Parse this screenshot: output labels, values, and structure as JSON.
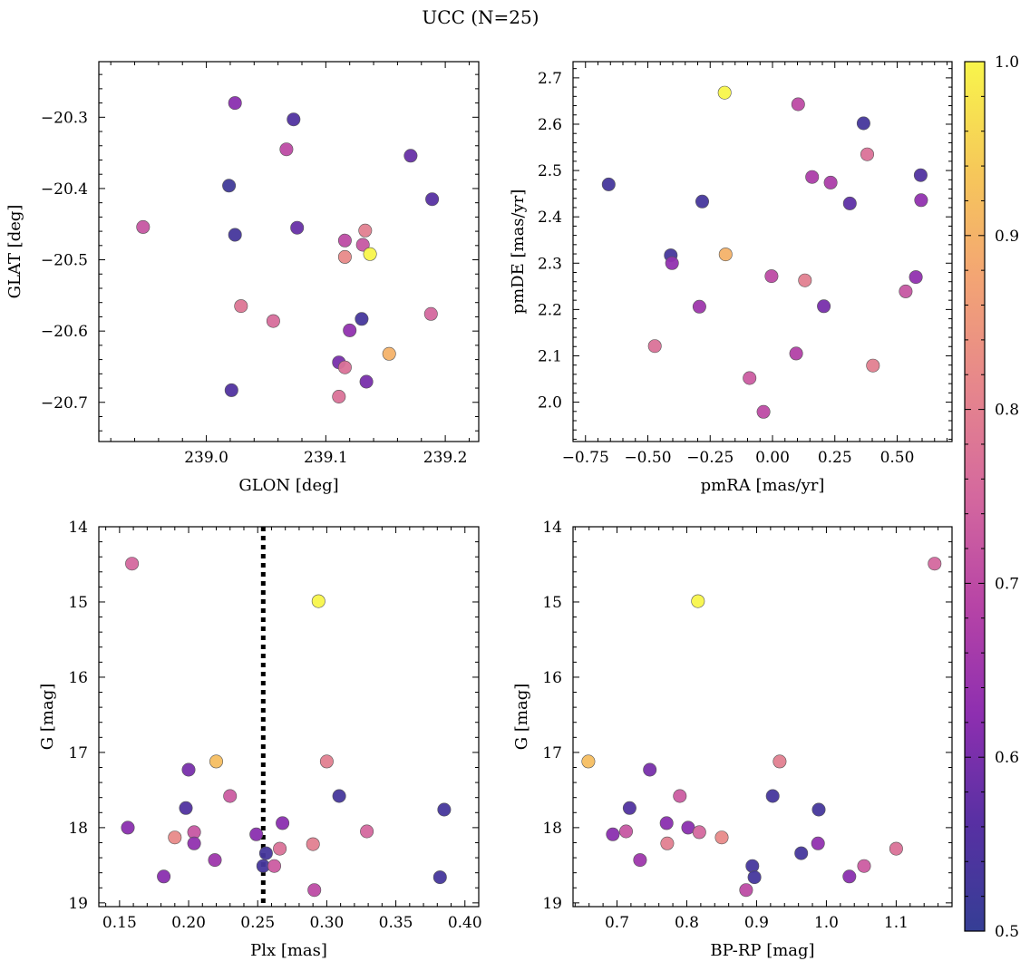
{
  "figure": {
    "title": "UCC (N=25)"
  },
  "chart_data": [
    {
      "type": "scatter",
      "xlabel": "GLON [deg]",
      "ylabel": "GLAT [deg]",
      "xlim": [
        238.91,
        239.228
      ],
      "ylim": [
        -20.755,
        -20.222
      ],
      "xticks": [
        239.0,
        239.1,
        239.2
      ],
      "xtick_labels": [
        "239.0",
        "239.1",
        "239.2"
      ],
      "yticks": [
        -20.3,
        -20.4,
        -20.5,
        -20.6,
        -20.7
      ],
      "ytick_labels": [
        "−20.3",
        "−20.4",
        "−20.5",
        "−20.6",
        "−20.7"
      ],
      "x_minor_step": 0.02,
      "y_minor_step": 0.02,
      "y_inverted": false,
      "points": [
        {
          "x": 239.024,
          "y": -20.28,
          "c": 0.62
        },
        {
          "x": 239.073,
          "y": -20.303,
          "c": 0.55
        },
        {
          "x": 239.067,
          "y": -20.345,
          "c": 0.7
        },
        {
          "x": 239.171,
          "y": -20.354,
          "c": 0.58
        },
        {
          "x": 239.019,
          "y": -20.396,
          "c": 0.52
        },
        {
          "x": 239.189,
          "y": -20.415,
          "c": 0.56
        },
        {
          "x": 238.947,
          "y": -20.454,
          "c": 0.72
        },
        {
          "x": 239.076,
          "y": -20.455,
          "c": 0.58
        },
        {
          "x": 239.024,
          "y": -20.465,
          "c": 0.53
        },
        {
          "x": 239.133,
          "y": -20.459,
          "c": 0.8
        },
        {
          "x": 239.116,
          "y": -20.473,
          "c": 0.7
        },
        {
          "x": 239.131,
          "y": -20.479,
          "c": 0.72
        },
        {
          "x": 239.137,
          "y": -20.492,
          "c": 1.0
        },
        {
          "x": 239.116,
          "y": -20.496,
          "c": 0.82
        },
        {
          "x": 239.029,
          "y": -20.565,
          "c": 0.78
        },
        {
          "x": 239.188,
          "y": -20.576,
          "c": 0.75
        },
        {
          "x": 239.13,
          "y": -20.583,
          "c": 0.53
        },
        {
          "x": 239.056,
          "y": -20.586,
          "c": 0.76
        },
        {
          "x": 239.12,
          "y": -20.599,
          "c": 0.63
        },
        {
          "x": 239.153,
          "y": -20.632,
          "c": 0.9
        },
        {
          "x": 239.111,
          "y": -20.644,
          "c": 0.6
        },
        {
          "x": 239.116,
          "y": -20.651,
          "c": 0.77
        },
        {
          "x": 239.134,
          "y": -20.671,
          "c": 0.6
        },
        {
          "x": 239.021,
          "y": -20.683,
          "c": 0.55
        },
        {
          "x": 239.111,
          "y": -20.692,
          "c": 0.77
        }
      ]
    },
    {
      "type": "scatter",
      "xlabel": "pmRA [mas/yr]",
      "ylabel": "pmDE [mas/yr]",
      "xlim": [
        -0.8,
        0.72
      ],
      "ylim": [
        1.915,
        2.735
      ],
      "xticks": [
        -0.75,
        -0.5,
        -0.25,
        0.0,
        0.25,
        0.5
      ],
      "xtick_labels": [
        "−0.75",
        "−0.50",
        "−0.25",
        "0.00",
        "0.25",
        "0.50"
      ],
      "yticks": [
        2.0,
        2.1,
        2.2,
        2.3,
        2.4,
        2.5,
        2.6,
        2.7
      ],
      "ytick_labels": [
        "2.0",
        "2.1",
        "2.2",
        "2.3",
        "2.4",
        "2.5",
        "2.6",
        "2.7"
      ],
      "x_minor_step": 0.05,
      "y_minor_step": 0.02,
      "y_inverted": false,
      "points": [
        {
          "x": -0.192,
          "y": 2.668,
          "c": 1.0
        },
        {
          "x": 0.103,
          "y": 2.643,
          "c": 0.7
        },
        {
          "x": 0.365,
          "y": 2.602,
          "c": 0.53
        },
        {
          "x": 0.38,
          "y": 2.535,
          "c": 0.77
        },
        {
          "x": 0.594,
          "y": 2.49,
          "c": 0.55
        },
        {
          "x": 0.159,
          "y": 2.486,
          "c": 0.67
        },
        {
          "x": 0.233,
          "y": 2.474,
          "c": 0.67
        },
        {
          "x": -0.657,
          "y": 2.47,
          "c": 0.53
        },
        {
          "x": 0.596,
          "y": 2.436,
          "c": 0.63
        },
        {
          "x": -0.282,
          "y": 2.433,
          "c": 0.53
        },
        {
          "x": 0.31,
          "y": 2.429,
          "c": 0.57
        },
        {
          "x": -0.408,
          "y": 2.317,
          "c": 0.53
        },
        {
          "x": -0.188,
          "y": 2.319,
          "c": 0.9
        },
        {
          "x": -0.403,
          "y": 2.3,
          "c": 0.63
        },
        {
          "x": -0.004,
          "y": 2.272,
          "c": 0.7
        },
        {
          "x": 0.575,
          "y": 2.27,
          "c": 0.63
        },
        {
          "x": 0.13,
          "y": 2.263,
          "c": 0.8
        },
        {
          "x": 0.534,
          "y": 2.239,
          "c": 0.72
        },
        {
          "x": -0.293,
          "y": 2.206,
          "c": 0.65
        },
        {
          "x": 0.206,
          "y": 2.207,
          "c": 0.6
        },
        {
          "x": -0.472,
          "y": 2.121,
          "c": 0.77
        },
        {
          "x": 0.095,
          "y": 2.105,
          "c": 0.68
        },
        {
          "x": 0.403,
          "y": 2.079,
          "c": 0.8
        },
        {
          "x": -0.092,
          "y": 2.052,
          "c": 0.73
        },
        {
          "x": -0.036,
          "y": 1.979,
          "c": 0.7
        }
      ]
    },
    {
      "type": "scatter",
      "xlabel": "Plx [mas]",
      "ylabel": "G [mag]",
      "xlim": [
        0.135,
        0.41
      ],
      "ylim": [
        19.05,
        14.0
      ],
      "xticks": [
        0.15,
        0.2,
        0.25,
        0.3,
        0.35,
        0.4
      ],
      "xtick_labels": [
        "0.15",
        "0.20",
        "0.25",
        "0.30",
        "0.35",
        "0.40"
      ],
      "yticks": [
        14,
        15,
        16,
        17,
        18,
        19
      ],
      "ytick_labels": [
        "14",
        "15",
        "16",
        "17",
        "18",
        "19"
      ],
      "x_minor_step": 0.01,
      "y_minor_step": 0.2,
      "y_inverted": true,
      "vline": 0.254,
      "points": [
        {
          "x": 0.159,
          "y": 14.49,
          "c": 0.75
        },
        {
          "x": 0.294,
          "y": 14.99,
          "c": 1.0
        },
        {
          "x": 0.22,
          "y": 17.12,
          "c": 0.92
        },
        {
          "x": 0.3,
          "y": 17.12,
          "c": 0.8
        },
        {
          "x": 0.2,
          "y": 17.23,
          "c": 0.6
        },
        {
          "x": 0.23,
          "y": 17.58,
          "c": 0.73
        },
        {
          "x": 0.309,
          "y": 17.58,
          "c": 0.53
        },
        {
          "x": 0.198,
          "y": 17.74,
          "c": 0.55
        },
        {
          "x": 0.385,
          "y": 17.76,
          "c": 0.53
        },
        {
          "x": 0.268,
          "y": 17.94,
          "c": 0.62
        },
        {
          "x": 0.156,
          "y": 18.0,
          "c": 0.62
        },
        {
          "x": 0.329,
          "y": 18.05,
          "c": 0.75
        },
        {
          "x": 0.204,
          "y": 18.06,
          "c": 0.72
        },
        {
          "x": 0.249,
          "y": 18.09,
          "c": 0.62
        },
        {
          "x": 0.19,
          "y": 18.13,
          "c": 0.82
        },
        {
          "x": 0.204,
          "y": 18.21,
          "c": 0.63
        },
        {
          "x": 0.29,
          "y": 18.22,
          "c": 0.8
        },
        {
          "x": 0.266,
          "y": 18.28,
          "c": 0.77
        },
        {
          "x": 0.256,
          "y": 18.34,
          "c": 0.53
        },
        {
          "x": 0.219,
          "y": 18.43,
          "c": 0.65
        },
        {
          "x": 0.254,
          "y": 18.51,
          "c": 0.53
        },
        {
          "x": 0.262,
          "y": 18.51,
          "c": 0.73
        },
        {
          "x": 0.182,
          "y": 18.65,
          "c": 0.62
        },
        {
          "x": 0.382,
          "y": 18.66,
          "c": 0.53
        },
        {
          "x": 0.291,
          "y": 18.83,
          "c": 0.7
        }
      ]
    },
    {
      "type": "scatter",
      "xlabel": "BP-RP [mag]",
      "ylabel": "G [mag]",
      "xlim": [
        0.637,
        1.18
      ],
      "ylim": [
        19.05,
        14.0
      ],
      "xticks": [
        0.7,
        0.8,
        0.9,
        1.0,
        1.1
      ],
      "xtick_labels": [
        "0.7",
        "0.8",
        "0.9",
        "1.0",
        "1.1"
      ],
      "yticks": [
        14,
        15,
        16,
        17,
        18,
        19
      ],
      "ytick_labels": [
        "14",
        "15",
        "16",
        "17",
        "18",
        "19"
      ],
      "x_minor_step": 0.02,
      "y_minor_step": 0.2,
      "y_inverted": true,
      "points": [
        {
          "x": 1.155,
          "y": 14.49,
          "c": 0.75
        },
        {
          "x": 0.816,
          "y": 14.99,
          "c": 1.0
        },
        {
          "x": 0.659,
          "y": 17.12,
          "c": 0.92
        },
        {
          "x": 0.933,
          "y": 17.12,
          "c": 0.8
        },
        {
          "x": 0.747,
          "y": 17.23,
          "c": 0.6
        },
        {
          "x": 0.79,
          "y": 17.58,
          "c": 0.73
        },
        {
          "x": 0.923,
          "y": 17.58,
          "c": 0.53
        },
        {
          "x": 0.718,
          "y": 17.74,
          "c": 0.55
        },
        {
          "x": 0.989,
          "y": 17.76,
          "c": 0.53
        },
        {
          "x": 0.771,
          "y": 17.94,
          "c": 0.62
        },
        {
          "x": 0.802,
          "y": 18.0,
          "c": 0.62
        },
        {
          "x": 0.713,
          "y": 18.05,
          "c": 0.72
        },
        {
          "x": 0.818,
          "y": 18.06,
          "c": 0.75
        },
        {
          "x": 0.694,
          "y": 18.09,
          "c": 0.62
        },
        {
          "x": 0.85,
          "y": 18.13,
          "c": 0.82
        },
        {
          "x": 0.772,
          "y": 18.21,
          "c": 0.8
        },
        {
          "x": 0.988,
          "y": 18.21,
          "c": 0.63
        },
        {
          "x": 1.1,
          "y": 18.28,
          "c": 0.77
        },
        {
          "x": 0.964,
          "y": 18.34,
          "c": 0.53
        },
        {
          "x": 0.733,
          "y": 18.43,
          "c": 0.65
        },
        {
          "x": 0.894,
          "y": 18.51,
          "c": 0.53
        },
        {
          "x": 1.054,
          "y": 18.51,
          "c": 0.73
        },
        {
          "x": 1.033,
          "y": 18.65,
          "c": 0.62
        },
        {
          "x": 0.897,
          "y": 18.66,
          "c": 0.53
        },
        {
          "x": 0.885,
          "y": 18.83,
          "c": 0.7
        }
      ]
    }
  ],
  "colorbar": {
    "colormap": "plasma",
    "range": [
      0.5,
      1.0
    ],
    "ticks": [
      0.5,
      0.6,
      0.7,
      0.8,
      0.9,
      1.0
    ],
    "tick_labels": [
      "0.5",
      "0.6",
      "0.7",
      "0.8",
      "0.9",
      "1.0"
    ],
    "minor_step": 0.02,
    "colors": [
      "#353e95",
      "#5830a3",
      "#8e2fb0",
      "#b744a6",
      "#d4689e",
      "#e6868c",
      "#f3a474",
      "#f6c859",
      "#f8f54b"
    ]
  }
}
